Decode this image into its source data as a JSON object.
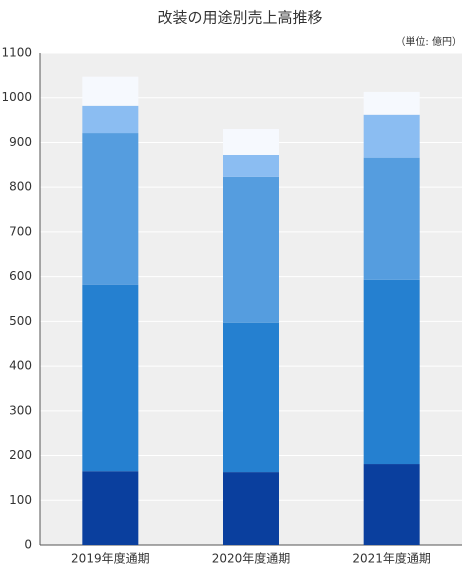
{
  "chart_data": {
    "type": "stacked_bar",
    "title": "改装の用途別売上高推移",
    "unit_label": "（単位: 億円）",
    "categories": [
      "2019年度通期",
      "2020年度通期",
      "2021年度通期"
    ],
    "series": [
      {
        "color": "#0a3f9e",
        "values": [
          165,
          163,
          181
        ]
      },
      {
        "color": "#2580d0",
        "values": [
          417,
          334,
          412
        ]
      },
      {
        "color": "#559ddf",
        "values": [
          339,
          326,
          273
        ]
      },
      {
        "color": "#8bbdf2",
        "values": [
          61,
          49,
          96
        ]
      },
      {
        "color": "#f6f9fe",
        "values": [
          65,
          58,
          51
        ]
      }
    ],
    "ylim": [
      0,
      1100
    ],
    "yticks": [
      0,
      100,
      200,
      300,
      400,
      500,
      600,
      700,
      800,
      900,
      1000,
      1100
    ],
    "grid": true
  }
}
